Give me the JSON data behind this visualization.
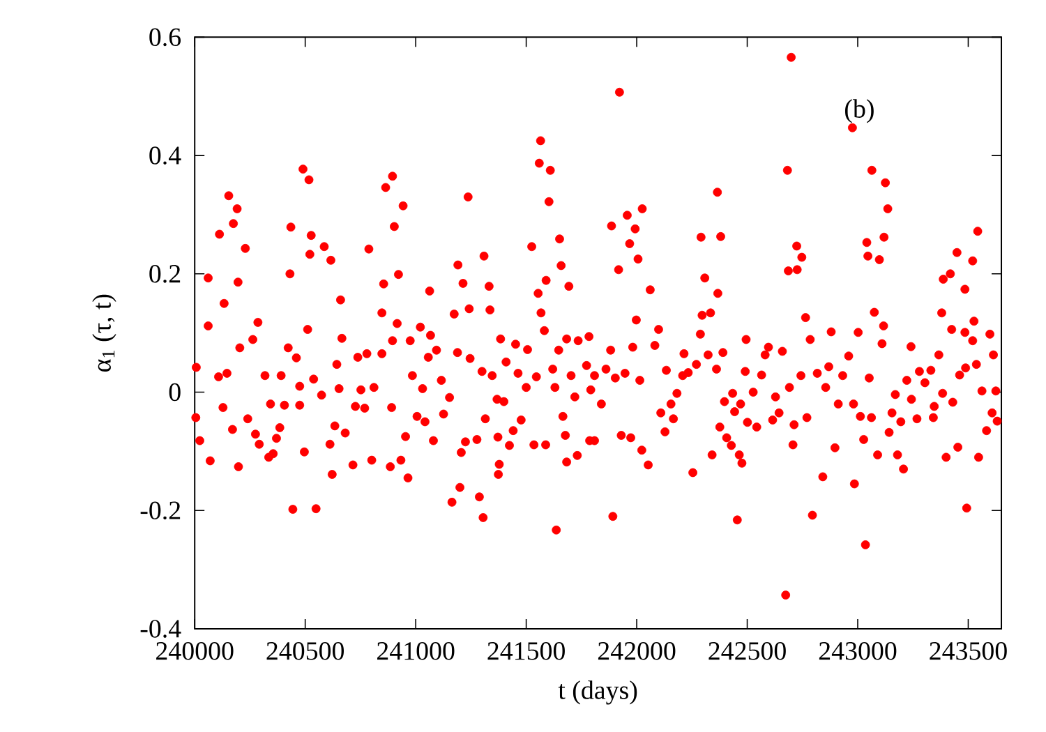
{
  "chart_data": {
    "type": "scatter",
    "xlabel": "t (days)",
    "ylabel": "α$_{1}$ (τ, t)",
    "annotations": [
      "(b)"
    ],
    "xlim": [
      240000,
      243650
    ],
    "ylim": [
      -0.4,
      0.6
    ],
    "xticks": [
      240000,
      240500,
      241000,
      241500,
      242000,
      242500,
      243000,
      243500
    ],
    "yticks": [
      -0.4,
      -0.2,
      0,
      0.2,
      0.4,
      0.6
    ],
    "grid": false,
    "series": [
      {
        "color": "#ff0000",
        "x": [
          240061,
          240154,
          240112,
          240175,
          240192,
          240229,
          240196,
          240133,
          240435,
          240490,
          240517,
          240527,
          240431,
          240521,
          240586,
          240616,
          240660,
          240788,
          240864,
          240895,
          240943,
          240903,
          240922,
          240855,
          241063,
          241237,
          241191,
          241309,
          241332,
          241214,
          241525,
          241565,
          241559,
          241609,
          241603,
          241651,
          241658,
          241590,
          241693,
          241554,
          241922,
          242699,
          242976,
          242682,
          243064,
          243125,
          243136,
          242365,
          241886,
          241957,
          242025,
          241993,
          241968,
          242006,
          241918,
          242291,
          242380,
          242308,
          242724,
          242747,
          242686,
          242726,
          243041,
          243119,
          243046,
          243098,
          243543,
          243449,
          243520,
          243419,
          243387,
          243485,
          242061,
          242367,
          240007,
          240005,
          240023,
          240070,
          240061,
          240108,
          240128,
          240171,
          240198,
          240146,
          240204,
          240263,
          240240,
          240286,
          240275,
          240292,
          240318,
          240335,
          240355,
          240370,
          240343,
          240385,
          240391,
          240423,
          240444,
          240460,
          240406,
          240475,
          240475,
          240496,
          240549,
          240511,
          240538,
          240574,
          240612,
          240622,
          240634,
          240643,
          240653,
          240666,
          240681,
          240716,
          240738,
          240727,
          240752,
          240779,
          240769,
          240801,
          240811,
          240847,
          240847,
          240885,
          240891,
          240895,
          240916,
          240933,
          240954,
          240965,
          240975,
          240985,
          241006,
          241021,
          241031,
          241042,
          241057,
          241067,
          241080,
          241094,
          241116,
          241126,
          241153,
          241164,
          241174,
          241189,
          241200,
          241206,
          241225,
          241242,
          241246,
          241277,
          241288,
          241305,
          241300,
          241315,
          241336,
          241346,
          241368,
          241372,
          241378,
          241374,
          241384,
          241399,
          241409,
          241424,
          241441,
          241452,
          241463,
          241477,
          241506,
          241500,
          241546,
          241535,
          241567,
          241582,
          241588,
          241620,
          241636,
          241630,
          241647,
          241666,
          241683,
          241677,
          241683,
          241703,
          241720,
          241731,
          241735,
          241773,
          241784,
          241792,
          241809,
          241892,
          241787,
          241809,
          241840,
          241861,
          241882,
          241903,
          241930,
          241973,
          241947,
          241982,
          241998,
          242023,
          242052,
          242014,
          242082,
          242099,
          242109,
          242128,
          242134,
          242166,
          242155,
          242182,
          242214,
          242208,
          242233,
          242254,
          242270,
          242288,
          242296,
          242334,
          242323,
          242341,
          242361,
          242376,
          242390,
          242397,
          242407,
          242428,
          242434,
          242443,
          242455,
          242464,
          242476,
          242470,
          242491,
          242495,
          242501,
          242527,
          242543,
          242565,
          242581,
          242596,
          242615,
          242628,
          242644,
          242659,
          242674,
          242691,
          242712,
          242707,
          242743,
          242770,
          242764,
          242785,
          242795,
          242817,
          242842,
          242855,
          242869,
          242880,
          242897,
          242912,
          242932,
          242959,
          242981,
          242985,
          243002,
          243012,
          243027,
          243035,
          243052,
          243062,
          243075,
          243090,
          243110,
          243117,
          243142,
          243155,
          243170,
          243180,
          243195,
          243207,
          243222,
          243241,
          243243,
          243268,
          243279,
          243304,
          243331,
          243342,
          243346,
          243367,
          243380,
          243384,
          243400,
          243425,
          243430,
          243453,
          243461,
          243485,
          243493,
          243488,
          243520,
          243526,
          243537,
          243547,
          243562,
          243583,
          243598,
          243608,
          243614,
          243625,
          243631
        ],
        "values": [
          0.193,
          0.332,
          0.267,
          0.285,
          0.31,
          0.243,
          0.186,
          0.15,
          0.279,
          0.377,
          0.359,
          0.265,
          0.2,
          0.233,
          0.246,
          0.223,
          0.156,
          0.242,
          0.346,
          0.365,
          0.315,
          0.28,
          0.199,
          0.183,
          0.171,
          0.33,
          0.215,
          0.23,
          0.179,
          0.184,
          0.246,
          0.425,
          0.387,
          0.375,
          0.322,
          0.259,
          0.214,
          0.189,
          0.179,
          0.167,
          0.507,
          0.566,
          0.447,
          0.375,
          0.375,
          0.354,
          0.31,
          0.338,
          0.281,
          0.299,
          0.31,
          0.276,
          0.251,
          0.225,
          0.207,
          0.262,
          0.263,
          0.193,
          0.247,
          0.228,
          0.205,
          0.207,
          0.253,
          0.262,
          0.23,
          0.224,
          0.272,
          0.236,
          0.222,
          0.2,
          0.191,
          0.174,
          0.173,
          0.167,
          0.042,
          -0.043,
          -0.082,
          -0.116,
          0.112,
          0.026,
          -0.026,
          -0.063,
          -0.126,
          0.032,
          0.075,
          0.089,
          -0.045,
          0.118,
          -0.071,
          -0.088,
          0.028,
          -0.11,
          -0.104,
          -0.078,
          -0.02,
          -0.06,
          0.028,
          0.075,
          -0.198,
          0.058,
          -0.022,
          -0.022,
          0.01,
          -0.101,
          -0.197,
          0.106,
          0.022,
          -0.005,
          -0.088,
          -0.139,
          -0.057,
          0.047,
          0.006,
          0.091,
          -0.069,
          -0.123,
          0.059,
          -0.024,
          0.004,
          0.065,
          -0.027,
          -0.115,
          0.008,
          0.134,
          0.065,
          -0.126,
          -0.026,
          0.087,
          0.116,
          -0.115,
          -0.075,
          -0.145,
          0.087,
          0.028,
          -0.041,
          0.11,
          0.006,
          -0.05,
          0.059,
          0.096,
          -0.082,
          0.071,
          0.02,
          -0.037,
          -0.009,
          -0.186,
          0.132,
          0.067,
          -0.161,
          -0.102,
          -0.084,
          0.141,
          0.057,
          -0.08,
          -0.177,
          -0.212,
          0.035,
          -0.045,
          0.139,
          0.028,
          -0.012,
          -0.076,
          -0.122,
          -0.139,
          0.09,
          -0.016,
          0.051,
          -0.09,
          -0.065,
          0.081,
          0.032,
          -0.047,
          0.072,
          0.008,
          0.026,
          -0.089,
          0.134,
          0.104,
          -0.089,
          0.039,
          -0.233,
          0.008,
          0.071,
          -0.041,
          -0.118,
          -0.073,
          0.09,
          0.028,
          -0.008,
          -0.107,
          0.087,
          0.045,
          0.094,
          0.004,
          -0.082,
          -0.21,
          -0.082,
          0.028,
          -0.02,
          0.039,
          0.071,
          0.024,
          -0.073,
          -0.077,
          0.032,
          0.076,
          0.122,
          -0.098,
          -0.123,
          0.02,
          0.079,
          0.106,
          -0.035,
          -0.067,
          0.037,
          -0.045,
          -0.02,
          -0.002,
          0.065,
          0.028,
          0.033,
          -0.136,
          0.047,
          0.098,
          0.13,
          0.134,
          0.063,
          -0.106,
          0.039,
          -0.059,
          0.067,
          -0.016,
          -0.077,
          -0.09,
          -0.002,
          -0.033,
          -0.216,
          -0.106,
          -0.12,
          -0.02,
          0.035,
          0.089,
          -0.051,
          0.0,
          -0.059,
          0.029,
          0.063,
          0.076,
          -0.047,
          -0.008,
          -0.035,
          0.069,
          -0.343,
          0.008,
          -0.055,
          -0.089,
          0.028,
          -0.043,
          0.126,
          0.089,
          -0.208,
          0.032,
          -0.143,
          0.008,
          0.043,
          0.102,
          -0.094,
          -0.02,
          0.028,
          0.061,
          -0.02,
          -0.155,
          0.101,
          -0.041,
          -0.08,
          -0.258,
          0.024,
          -0.043,
          0.135,
          -0.106,
          0.082,
          0.112,
          -0.068,
          -0.035,
          -0.004,
          -0.106,
          -0.05,
          -0.13,
          0.02,
          0.077,
          -0.012,
          -0.045,
          0.035,
          0.016,
          0.037,
          -0.043,
          -0.024,
          0.063,
          0.134,
          -0.002,
          -0.11,
          0.106,
          -0.017,
          -0.093,
          0.029,
          0.101,
          -0.196,
          0.041,
          0.087,
          0.12,
          0.047,
          -0.11,
          0.002,
          -0.065,
          0.098,
          -0.035,
          0.063,
          0.002,
          -0.049
        ]
      }
    ]
  }
}
